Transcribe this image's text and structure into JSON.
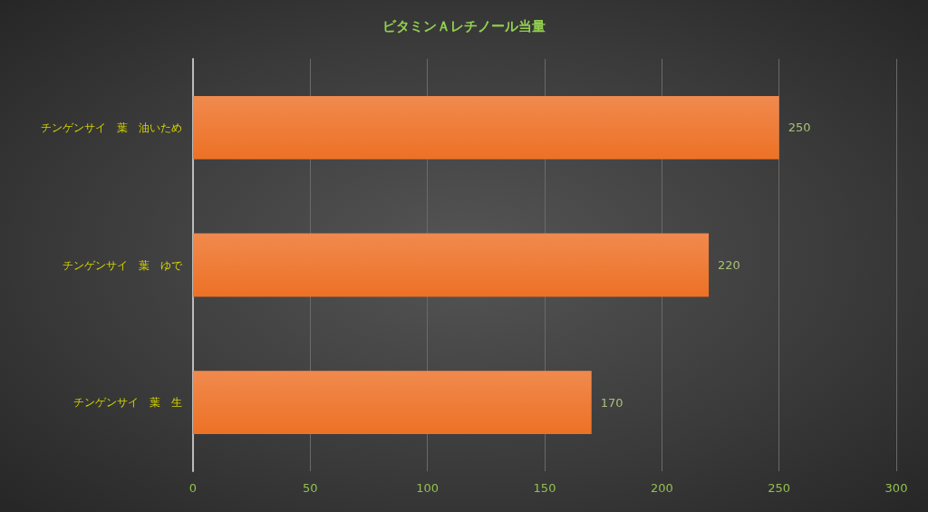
{
  "chart_data": {
    "type": "bar",
    "orientation": "horizontal",
    "title": "ビタミンＡレチノール当量",
    "categories": [
      "チンゲンサイ　葉　油いため",
      "チンゲンサイ　葉　ゆで",
      "チンゲンサイ　葉　生"
    ],
    "values": [
      250,
      220,
      170
    ],
    "color": "#ed7125",
    "xlim": [
      0,
      300
    ],
    "xticks": [
      0,
      50,
      100,
      150,
      200,
      250,
      300
    ],
    "grid": "x",
    "data_labels": true
  }
}
